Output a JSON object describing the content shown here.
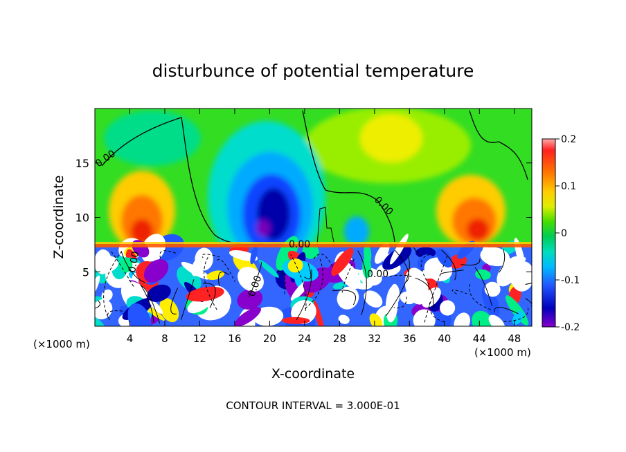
{
  "chart_data": {
    "type": "heatmap",
    "title": "disturbunce of potential temperature",
    "xlabel": "X-coordinate",
    "ylabel": "Z-coordinate",
    "x_unit": "(×1000 m)",
    "x_unit_right": "(×1000 m)",
    "xlim": [
      0,
      50
    ],
    "ylim": [
      0,
      20
    ],
    "x_ticks": [
      "4",
      "8",
      "12",
      "16",
      "20",
      "24",
      "28",
      "32",
      "36",
      "40",
      "44",
      "48"
    ],
    "y_ticks": [
      "5",
      "10",
      "15"
    ],
    "colorbar": {
      "range": [
        -0.2,
        0.2
      ],
      "tick_labels": [
        "0.2",
        "0.1",
        "0",
        "-0.1",
        "-0.2"
      ]
    },
    "contour_labels": [
      "0.00",
      "0.00",
      "0.00",
      "0.00",
      "0.00",
      "0.00"
    ],
    "footer": "CONTOUR INTERVAL = 3.000E-01",
    "features": [
      {
        "x": 6,
        "z": 11,
        "value": 0.15
      },
      {
        "x": 20,
        "z": 11,
        "value": -0.2
      },
      {
        "x": 30,
        "z": 9,
        "value": -0.08
      },
      {
        "x": 35,
        "z": 18,
        "value": 0.08
      },
      {
        "x": 44,
        "z": 10,
        "value": 0.15
      }
    ]
  }
}
